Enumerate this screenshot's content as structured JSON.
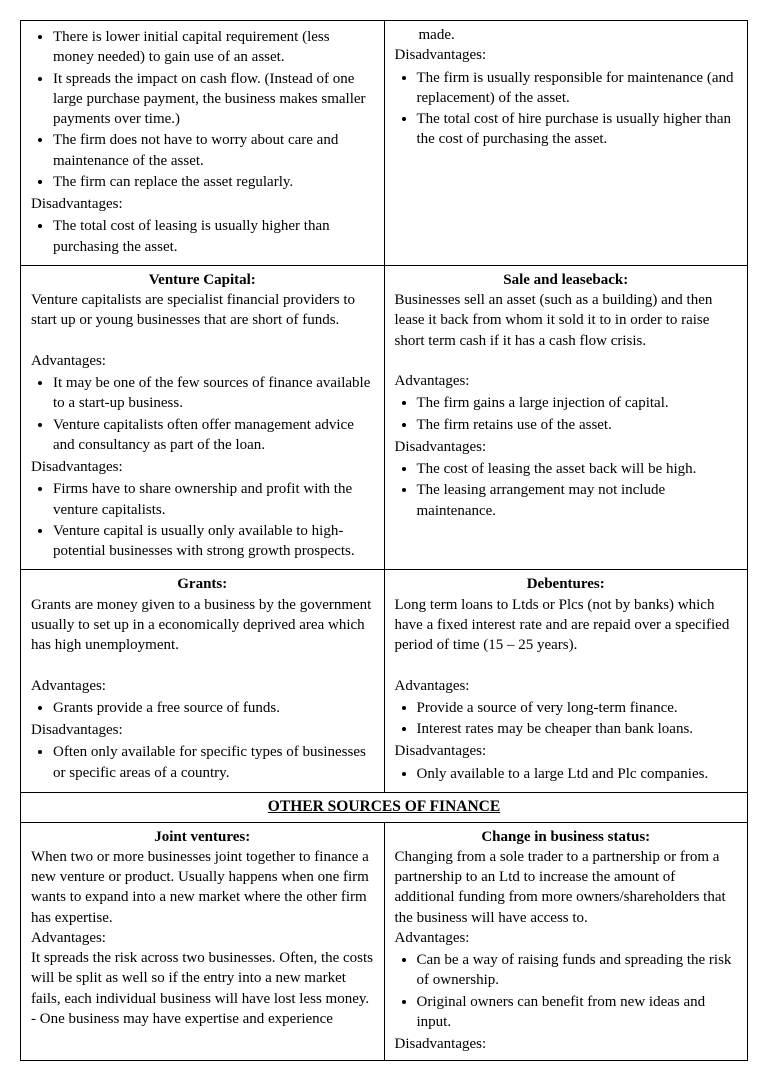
{
  "row1": {
    "left": {
      "adv": [
        "There is lower initial capital requirement (less money needed) to gain use of an asset.",
        "It spreads the impact on cash flow. (Instead of one large purchase payment, the business makes smaller payments over time.)",
        "The firm does not have to worry about care and maintenance of the asset.",
        "The firm can replace the asset regularly."
      ],
      "disLabel": "Disadvantages:",
      "dis": [
        "The total cost of leasing is usually higher than purchasing the asset."
      ]
    },
    "right": {
      "trail": "made.",
      "disLabel": "Disadvantages:",
      "dis": [
        "The firm is usually responsible for maintenance (and replacement) of the asset.",
        "The total cost of hire purchase is usually higher than the cost of purchasing the asset."
      ]
    }
  },
  "row2": {
    "left": {
      "title": "Venture Capital:",
      "intro": "Venture capitalists are specialist financial providers to start up or young businesses that are short of funds.",
      "advLabel": "Advantages:",
      "adv": [
        "It may be one of the few sources of finance available to a start-up business.",
        "Venture capitalists often offer management advice and consultancy as part of the loan."
      ],
      "disLabel": "Disadvantages:",
      "dis": [
        "Firms have to share ownership and profit with the venture capitalists.",
        "Venture capital is usually only available to high-potential businesses with strong growth prospects."
      ]
    },
    "right": {
      "title": "Sale and leaseback:",
      "intro": "Businesses sell an asset (such as a building) and then lease it back from whom it sold it to in order to raise short term cash if it has a cash flow crisis.",
      "advLabel": "Advantages:",
      "adv": [
        "The firm gains a large injection of capital.",
        "The firm retains use of the asset."
      ],
      "disLabel": "Disadvantages:",
      "dis": [
        "The cost of leasing the asset back will be high.",
        "The leasing arrangement may not include maintenance."
      ]
    }
  },
  "row3": {
    "left": {
      "title": "Grants:",
      "intro": "Grants are money given to a business by the government usually to set up in a economically deprived area which has high unemployment.",
      "advLabel": "Advantages:",
      "adv": [
        "Grants provide a free source of funds."
      ],
      "disLabel": "Disadvantages:",
      "dis": [
        "Often only available for specific types of businesses or specific areas of a country."
      ]
    },
    "right": {
      "title": "Debentures:",
      "intro": "Long term loans to Ltds or Plcs (not by banks) which have a fixed interest rate and are repaid over a specified period of time (15 – 25 years).",
      "advLabel": "Advantages:",
      "adv": [
        "Provide a source of very long-term finance.",
        "Interest rates may be cheaper than bank loans."
      ],
      "disLabel": "Disadvantages:",
      "dis": [
        "Only available to a large Ltd and Plc companies."
      ]
    }
  },
  "header": "OTHER SOURCES OF FINANCE",
  "row4": {
    "left": {
      "title": "Joint ventures:",
      "intro": "When two or more businesses joint together to finance a new venture or product. Usually happens when one firm wants to expand into a new market where the other firm has expertise.",
      "advLabel": "Advantages:",
      "advText": "It spreads the risk across two businesses. Often, the costs will be split as well so if the entry into a new market fails, each individual business will have lost less money.",
      "extra": "- One business may have expertise and experience"
    },
    "right": {
      "title": "Change in business status:",
      "intro": "Changing from a sole trader to a partnership or from a partnership to an Ltd to increase the amount of additional funding from more owners/shareholders that the business will have access to.",
      "advLabel": "Advantages:",
      "adv": [
        "Can be a way of raising funds and spreading the risk of ownership.",
        "Original owners can benefit from new ideas and input."
      ],
      "disLabel": "Disadvantages:"
    }
  }
}
